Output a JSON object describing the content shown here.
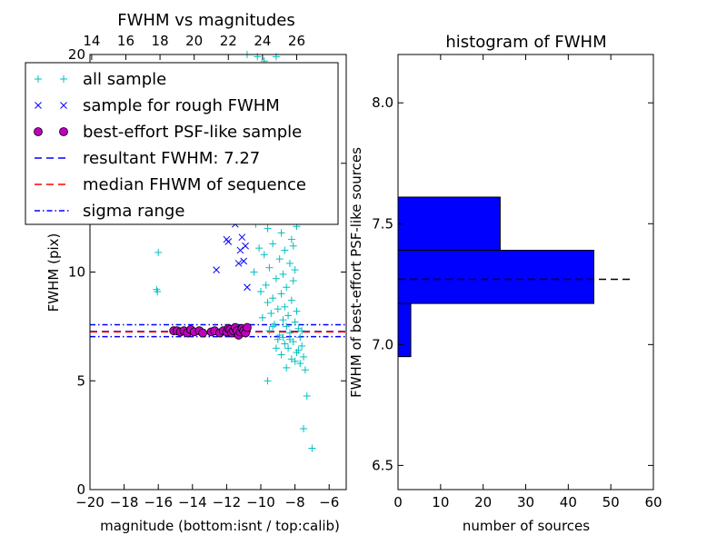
{
  "chart_data": [
    {
      "type": "scatter",
      "title": "FWHM vs magnitudes",
      "xlabel": "magnitude (bottom:isnt / top:calib)",
      "ylabel": "FWHM (pix)",
      "xlim": [
        -20,
        -5
      ],
      "ylim": [
        0,
        20
      ],
      "x_ticks": [
        -20,
        -18,
        -16,
        -14,
        -12,
        -10,
        -8,
        -6
      ],
      "x_tick_labels": [
        "−20",
        "−18",
        "−16",
        "−14",
        "−12",
        "−10",
        "−8",
        "−6"
      ],
      "y_ticks": [
        0,
        5,
        10,
        15,
        20
      ],
      "y_tick_labels": [
        "0",
        "5",
        "10",
        "15",
        "20"
      ],
      "top_axis": {
        "ticks": [
          14,
          16,
          18,
          20,
          22,
          24,
          26
        ],
        "tick_labels": [
          "14",
          "16",
          "18",
          "20",
          "22",
          "24",
          "26"
        ],
        "offset": 33.9
      },
      "grid": false,
      "legend": {
        "placement": "top-left",
        "entries": [
          {
            "label": "all sample",
            "marker": "+",
            "color": "#00bfbf"
          },
          {
            "label": "sample for rough FWHM",
            "marker": "x",
            "color": "#0000ff"
          },
          {
            "label": "best-effort PSF-like sample",
            "marker": "o",
            "color": "#bf00bf"
          },
          {
            "label": "resultant FWHM: 7.27",
            "linestyle": "dashed",
            "color": "#0000ff"
          },
          {
            "label": "median FHWM of sequence",
            "linestyle": "dashed",
            "color": "#ff0000"
          },
          {
            "label": "sigma range",
            "linestyle": "dashdot",
            "color": "#0000ff"
          }
        ]
      },
      "series": [
        {
          "name": "all sample",
          "marker": "+",
          "color": "#00bfbf",
          "points": [
            [
              -16.0,
              10.9
            ],
            [
              -16.1,
              9.2
            ],
            [
              -16.05,
              9.1
            ],
            [
              -9.6,
              5.0
            ],
            [
              -7.3,
              4.3
            ],
            [
              -7.5,
              2.8
            ],
            [
              -7.0,
              1.9
            ],
            [
              -10.8,
              20.0
            ],
            [
              -10.2,
              19.9
            ],
            [
              -9.8,
              19.7
            ],
            [
              -9.1,
              19.9
            ],
            [
              -9.5,
              18.4
            ],
            [
              -10.0,
              17.8
            ],
            [
              -9.7,
              16.5
            ],
            [
              -9.3,
              15.8
            ],
            [
              -8.9,
              15.3
            ],
            [
              -8.5,
              15.6
            ],
            [
              -8.7,
              14.8
            ],
            [
              -9.9,
              14.6
            ],
            [
              -9.4,
              14.1
            ],
            [
              -8.6,
              13.9
            ],
            [
              -9.2,
              13.4
            ],
            [
              -10.6,
              13.0
            ],
            [
              -9.0,
              12.8
            ],
            [
              -8.4,
              12.6
            ],
            [
              -10.3,
              12.2
            ],
            [
              -9.6,
              12.0
            ],
            [
              -8.8,
              11.8
            ],
            [
              -8.2,
              11.5
            ],
            [
              -9.3,
              11.3
            ],
            [
              -10.1,
              11.1
            ],
            [
              -8.6,
              11.0
            ],
            [
              -9.8,
              10.8
            ],
            [
              -8.9,
              10.6
            ],
            [
              -8.3,
              10.4
            ],
            [
              -9.5,
              10.2
            ],
            [
              -10.4,
              10.0
            ],
            [
              -8.7,
              9.9
            ],
            [
              -9.1,
              9.7
            ],
            [
              -8.1,
              9.6
            ],
            [
              -9.7,
              9.4
            ],
            [
              -8.5,
              9.3
            ],
            [
              -10.0,
              9.1
            ],
            [
              -8.8,
              9.0
            ],
            [
              -9.3,
              8.8
            ],
            [
              -8.2,
              8.7
            ],
            [
              -9.6,
              8.6
            ],
            [
              -8.6,
              8.4
            ],
            [
              -9.0,
              8.3
            ],
            [
              -7.9,
              8.2
            ],
            [
              -9.4,
              8.1
            ],
            [
              -8.4,
              8.0
            ],
            [
              -9.9,
              7.9
            ],
            [
              -8.7,
              7.8
            ],
            [
              -8.0,
              7.7
            ],
            [
              -9.2,
              7.6
            ],
            [
              -8.5,
              7.5
            ],
            [
              -7.8,
              7.4
            ],
            [
              -9.5,
              7.3
            ],
            [
              -8.3,
              7.2
            ],
            [
              -8.9,
              7.1
            ],
            [
              -7.7,
              7.0
            ],
            [
              -9.0,
              6.9
            ],
            [
              -8.1,
              6.8
            ],
            [
              -8.6,
              6.7
            ],
            [
              -7.6,
              6.6
            ],
            [
              -8.4,
              6.5
            ],
            [
              -7.9,
              6.3
            ],
            [
              -8.8,
              6.2
            ],
            [
              -7.5,
              6.1
            ],
            [
              -8.2,
              6.0
            ],
            [
              -7.7,
              5.8
            ],
            [
              -8.5,
              5.6
            ],
            [
              -7.4,
              5.5
            ],
            [
              -8.0,
              5.9
            ],
            [
              -7.8,
              6.4
            ],
            [
              -9.1,
              6.5
            ],
            [
              -8.3,
              6.9
            ],
            [
              -7.6,
              7.3
            ],
            [
              -8.7,
              7.0
            ],
            [
              -9.3,
              7.5
            ],
            [
              -8.0,
              10.1
            ],
            [
              -8.1,
              11.2
            ],
            [
              -7.9,
              12.1
            ],
            [
              -8.0,
              13.1
            ],
            [
              -8.2,
              14.2
            ],
            [
              -8.4,
              16.2
            ],
            [
              -8.8,
              17.3
            ],
            [
              -9.2,
              18.6
            ],
            [
              -9.6,
              19.2
            ]
          ]
        },
        {
          "name": "sample for rough FWHM",
          "marker": "x",
          "color": "#0000ff",
          "points": [
            [
              -12.6,
              10.1
            ],
            [
              -11.3,
              10.4
            ],
            [
              -11.0,
              10.5
            ],
            [
              -10.8,
              9.3
            ],
            [
              -12.0,
              11.5
            ],
            [
              -11.9,
              11.4
            ],
            [
              -11.2,
              11.0
            ],
            [
              -10.9,
              11.2
            ],
            [
              -11.5,
              12.2
            ],
            [
              -11.4,
              12.4
            ],
            [
              -11.3,
              12.6
            ],
            [
              -11.1,
              11.6
            ]
          ]
        },
        {
          "name": "best-effort PSF-like sample",
          "marker": "o",
          "color": "#bf00bf",
          "points": [
            [
              -15.1,
              7.3
            ],
            [
              -14.9,
              7.3
            ],
            [
              -14.7,
              7.25
            ],
            [
              -14.5,
              7.3
            ],
            [
              -14.3,
              7.2
            ],
            [
              -14.1,
              7.35
            ],
            [
              -13.9,
              7.25
            ],
            [
              -13.6,
              7.3
            ],
            [
              -13.4,
              7.2
            ],
            [
              -12.9,
              7.25
            ],
            [
              -12.7,
              7.3
            ],
            [
              -12.4,
              7.2
            ],
            [
              -12.2,
              7.3
            ],
            [
              -12.0,
              7.25
            ],
            [
              -11.9,
              7.4
            ],
            [
              -11.8,
              7.35
            ],
            [
              -11.7,
              7.2
            ],
            [
              -11.6,
              7.3
            ],
            [
              -11.5,
              7.45
            ],
            [
              -11.4,
              7.3
            ],
            [
              -11.3,
              7.1
            ],
            [
              -11.2,
              7.25
            ],
            [
              -11.1,
              7.4
            ],
            [
              -11.0,
              7.3
            ],
            [
              -10.9,
              7.2
            ],
            [
              -10.8,
              7.45
            ]
          ]
        }
      ],
      "lines": [
        {
          "name": "resultant FWHM",
          "y": 7.27,
          "color": "#0000ff",
          "style": "dashed"
        },
        {
          "name": "median FHWM of sequence",
          "y": 7.25,
          "color": "#ff0000",
          "style": "dashed"
        },
        {
          "name": "sigma range lower",
          "y": 7.03,
          "color": "#0000ff",
          "style": "dashdot"
        },
        {
          "name": "sigma range upper",
          "y": 7.58,
          "color": "#0000ff",
          "style": "dashdot"
        }
      ]
    },
    {
      "type": "bar",
      "orientation": "horizontal",
      "title": "histogram of FWHM",
      "xlabel": "number of sources",
      "ylabel": "FWHM of best-effort PSF-like sources",
      "xlim": [
        0,
        60
      ],
      "ylim": [
        6.4,
        8.2
      ],
      "x_ticks": [
        0,
        10,
        20,
        30,
        40,
        50,
        60
      ],
      "x_tick_labels": [
        "0",
        "10",
        "20",
        "30",
        "40",
        "50",
        "60"
      ],
      "y_ticks": [
        6.5,
        7.0,
        7.5,
        8.0
      ],
      "y_tick_labels": [
        "6.5",
        "7.0",
        "7.5",
        "8.0"
      ],
      "grid": false,
      "bar_color": "#0000ff",
      "bins": [
        {
          "y0": 6.95,
          "y1": 7.17,
          "count": 3
        },
        {
          "y0": 7.17,
          "y1": 7.39,
          "count": 46
        },
        {
          "y0": 7.39,
          "y1": 7.61,
          "count": 24
        }
      ],
      "reference_line": {
        "y": 7.27,
        "x_range": [
          0,
          55
        ],
        "color": "#000000",
        "style": "dashed"
      }
    }
  ]
}
